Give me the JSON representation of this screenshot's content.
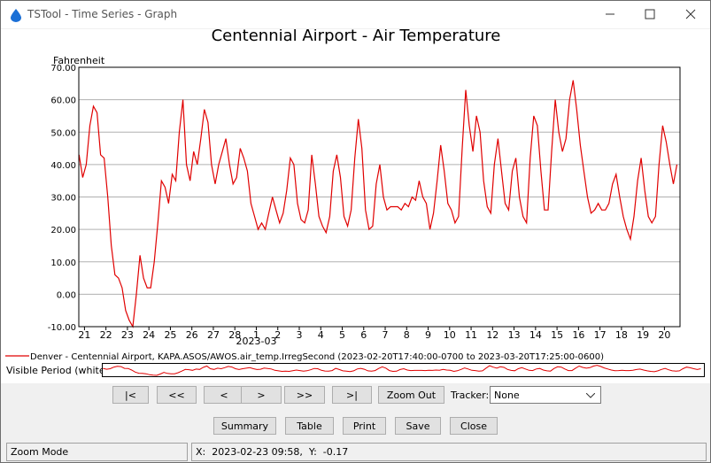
{
  "window": {
    "title": "TSTool - Time Series - Graph"
  },
  "chart_data": {
    "type": "line",
    "title": "Centennial Airport - Air Temperature",
    "y_label": "Fahrenheit",
    "grid": true,
    "xlim": [
      "2023-02-20 17:40",
      "2023-03-20 17:25"
    ],
    "ylim": [
      -10,
      70
    ],
    "yticks": [
      {
        "value": -10,
        "label": "-10.00"
      },
      {
        "value": 0,
        "label": "0.00"
      },
      {
        "value": 10,
        "label": "10.00"
      },
      {
        "value": 20,
        "label": "20.00"
      },
      {
        "value": 30,
        "label": "30.00"
      },
      {
        "value": 40,
        "label": "40.00"
      },
      {
        "value": 50,
        "label": "50.00"
      },
      {
        "value": 60,
        "label": "60.00"
      },
      {
        "value": 70,
        "label": "70.00"
      }
    ],
    "xticks": [
      {
        "value": "2023-02-21 00:00",
        "label": "21"
      },
      {
        "value": "2023-02-22 00:00",
        "label": "22"
      },
      {
        "value": "2023-02-23 00:00",
        "label": "23"
      },
      {
        "value": "2023-02-24 00:00",
        "label": "24"
      },
      {
        "value": "2023-02-25 00:00",
        "label": "25"
      },
      {
        "value": "2023-02-26 00:00",
        "label": "26"
      },
      {
        "value": "2023-02-27 00:00",
        "label": "27"
      },
      {
        "value": "2023-02-28 00:00",
        "label": "28"
      },
      {
        "value": "2023-03-01 00:00",
        "label": "1"
      },
      {
        "value": "2023-03-02 00:00",
        "label": "2"
      },
      {
        "value": "2023-03-03 00:00",
        "label": "3"
      },
      {
        "value": "2023-03-04 00:00",
        "label": "4"
      },
      {
        "value": "2023-03-05 00:00",
        "label": "5"
      },
      {
        "value": "2023-03-06 00:00",
        "label": "6"
      },
      {
        "value": "2023-03-07 00:00",
        "label": "7"
      },
      {
        "value": "2023-03-08 00:00",
        "label": "8"
      },
      {
        "value": "2023-03-09 00:00",
        "label": "9"
      },
      {
        "value": "2023-03-10 00:00",
        "label": "10"
      },
      {
        "value": "2023-03-11 00:00",
        "label": "11"
      },
      {
        "value": "2023-03-12 00:00",
        "label": "12"
      },
      {
        "value": "2023-03-13 00:00",
        "label": "13"
      },
      {
        "value": "2023-03-14 00:00",
        "label": "14"
      },
      {
        "value": "2023-03-15 00:00",
        "label": "15"
      },
      {
        "value": "2023-03-16 00:00",
        "label": "16"
      },
      {
        "value": "2023-03-17 00:00",
        "label": "17"
      },
      {
        "value": "2023-03-18 00:00",
        "label": "18"
      },
      {
        "value": "2023-03-19 00:00",
        "label": "19"
      },
      {
        "value": "2023-03-20 00:00",
        "label": "20"
      }
    ],
    "x_period_label": {
      "value": "2023-03-01 00:00",
      "label": "2023-03"
    },
    "x": [
      "2023-02-20 18:00",
      "2023-02-20 22:00",
      "2023-02-21 02:00",
      "2023-02-21 06:00",
      "2023-02-21 10:00",
      "2023-02-21 14:00",
      "2023-02-21 18:00",
      "2023-02-21 22:00",
      "2023-02-22 02:00",
      "2023-02-22 06:00",
      "2023-02-22 10:00",
      "2023-02-22 14:00",
      "2023-02-22 18:00",
      "2023-02-22 22:00",
      "2023-02-23 02:00",
      "2023-02-23 06:00",
      "2023-02-23 10:00",
      "2023-02-23 14:00",
      "2023-02-23 18:00",
      "2023-02-23 22:00",
      "2023-02-24 02:00",
      "2023-02-24 06:00",
      "2023-02-24 10:00",
      "2023-02-24 14:00",
      "2023-02-24 18:00",
      "2023-02-24 22:00",
      "2023-02-25 02:00",
      "2023-02-25 06:00",
      "2023-02-25 10:00",
      "2023-02-25 14:00",
      "2023-02-25 18:00",
      "2023-02-25 22:00",
      "2023-02-26 02:00",
      "2023-02-26 06:00",
      "2023-02-26 10:00",
      "2023-02-26 14:00",
      "2023-02-26 18:00",
      "2023-02-26 22:00",
      "2023-02-27 02:00",
      "2023-02-27 06:00",
      "2023-02-27 10:00",
      "2023-02-27 14:00",
      "2023-02-27 18:00",
      "2023-02-27 22:00",
      "2023-02-28 02:00",
      "2023-02-28 06:00",
      "2023-02-28 10:00",
      "2023-02-28 14:00",
      "2023-02-28 18:00",
      "2023-02-28 22:00",
      "2023-03-01 02:00",
      "2023-03-01 06:00",
      "2023-03-01 10:00",
      "2023-03-01 14:00",
      "2023-03-01 18:00",
      "2023-03-01 22:00",
      "2023-03-02 02:00",
      "2023-03-02 06:00",
      "2023-03-02 10:00",
      "2023-03-02 14:00",
      "2023-03-02 18:00",
      "2023-03-02 22:00",
      "2023-03-03 02:00",
      "2023-03-03 06:00",
      "2023-03-03 10:00",
      "2023-03-03 14:00",
      "2023-03-03 18:00",
      "2023-03-03 22:00",
      "2023-03-04 02:00",
      "2023-03-04 06:00",
      "2023-03-04 10:00",
      "2023-03-04 14:00",
      "2023-03-04 18:00",
      "2023-03-04 22:00",
      "2023-03-05 02:00",
      "2023-03-05 06:00",
      "2023-03-05 10:00",
      "2023-03-05 14:00",
      "2023-03-05 18:00",
      "2023-03-05 22:00",
      "2023-03-06 02:00",
      "2023-03-06 06:00",
      "2023-03-06 10:00",
      "2023-03-06 14:00",
      "2023-03-06 18:00",
      "2023-03-06 22:00",
      "2023-03-07 02:00",
      "2023-03-07 06:00",
      "2023-03-07 10:00",
      "2023-03-07 14:00",
      "2023-03-07 18:00",
      "2023-03-07 22:00",
      "2023-03-08 02:00",
      "2023-03-08 06:00",
      "2023-03-08 10:00",
      "2023-03-08 14:00",
      "2023-03-08 18:00",
      "2023-03-08 22:00",
      "2023-03-09 02:00",
      "2023-03-09 06:00",
      "2023-03-09 10:00",
      "2023-03-09 14:00",
      "2023-03-09 18:00",
      "2023-03-09 22:00",
      "2023-03-10 02:00",
      "2023-03-10 06:00",
      "2023-03-10 10:00",
      "2023-03-10 14:00",
      "2023-03-10 18:00",
      "2023-03-10 22:00",
      "2023-03-11 02:00",
      "2023-03-11 06:00",
      "2023-03-11 10:00",
      "2023-03-11 14:00",
      "2023-03-11 18:00",
      "2023-03-11 22:00",
      "2023-03-12 02:00",
      "2023-03-12 06:00",
      "2023-03-12 10:00",
      "2023-03-12 14:00",
      "2023-03-12 18:00",
      "2023-03-12 22:00",
      "2023-03-13 02:00",
      "2023-03-13 06:00",
      "2023-03-13 10:00",
      "2023-03-13 14:00",
      "2023-03-13 18:00",
      "2023-03-13 22:00",
      "2023-03-14 02:00",
      "2023-03-14 06:00",
      "2023-03-14 10:00",
      "2023-03-14 14:00",
      "2023-03-14 18:00",
      "2023-03-14 22:00",
      "2023-03-15 02:00",
      "2023-03-15 06:00",
      "2023-03-15 10:00",
      "2023-03-15 14:00",
      "2023-03-15 18:00",
      "2023-03-15 22:00",
      "2023-03-16 02:00",
      "2023-03-16 06:00",
      "2023-03-16 10:00",
      "2023-03-16 14:00",
      "2023-03-16 18:00",
      "2023-03-16 22:00",
      "2023-03-17 02:00",
      "2023-03-17 06:00",
      "2023-03-17 10:00",
      "2023-03-17 14:00",
      "2023-03-17 18:00",
      "2023-03-17 22:00",
      "2023-03-18 02:00",
      "2023-03-18 06:00",
      "2023-03-18 10:00",
      "2023-03-18 14:00",
      "2023-03-18 18:00",
      "2023-03-18 22:00",
      "2023-03-19 02:00",
      "2023-03-19 06:00",
      "2023-03-19 10:00",
      "2023-03-19 14:00",
      "2023-03-19 18:00",
      "2023-03-19 22:00",
      "2023-03-20 02:00",
      "2023-03-20 06:00",
      "2023-03-20 10:00",
      "2023-03-20 14:00"
    ],
    "series": [
      {
        "name": "Denver - Centennial Airport, KAPA.ASOS/AWOS.air_temp.IrregSecond (2023-02-20T17:40:00-0700 to 2023-03-20T17:25:00-0600)",
        "color": "#e00000",
        "values": [
          43,
          36,
          40,
          52,
          58,
          56,
          43,
          42,
          30,
          15,
          6,
          5,
          2,
          -5,
          -8,
          -10,
          0,
          12,
          5,
          2,
          2,
          10,
          22,
          35,
          33,
          28,
          37,
          35,
          50,
          60,
          40,
          35,
          44,
          40,
          48,
          57,
          53,
          40,
          34,
          40,
          44,
          48,
          40,
          34,
          36,
          45,
          42,
          38,
          28,
          24,
          20,
          22,
          20,
          25,
          30,
          26,
          22,
          25,
          32,
          42,
          40,
          28,
          23,
          22,
          26,
          43,
          34,
          24,
          21,
          19,
          24,
          38,
          43,
          36,
          24,
          21,
          26,
          42,
          54,
          45,
          26,
          20,
          21,
          34,
          40,
          30,
          26,
          27,
          27,
          27,
          26,
          28,
          27,
          30,
          29,
          35,
          30,
          28,
          20,
          25,
          35,
          46,
          38,
          28,
          26,
          22,
          24,
          45,
          63,
          52,
          44,
          55,
          50,
          35,
          27,
          25,
          40,
          48,
          38,
          28,
          26,
          38,
          42,
          30,
          24,
          22,
          42,
          55,
          52,
          38,
          26,
          26,
          44,
          60,
          50,
          44,
          48,
          60,
          66,
          57,
          46,
          38,
          30,
          25,
          26,
          28,
          26,
          26,
          28,
          34,
          37,
          30,
          24,
          20,
          17,
          24,
          35,
          42,
          32,
          24,
          22,
          24,
          40,
          52,
          47,
          40,
          34,
          40
        ]
      }
    ]
  },
  "overview": {
    "label": "Visible Period (white):"
  },
  "controls": {
    "nav_buttons": [
      "|<",
      "<<",
      "<",
      ">",
      ">>",
      ">|"
    ],
    "zoom_out": "Zoom Out",
    "tracker_label": "Tracker:",
    "tracker_value": "None",
    "action_buttons": [
      "Summary",
      "Table",
      "Print",
      "Save",
      "Close"
    ]
  },
  "status": {
    "mode": "Zoom Mode",
    "position": "X:  2023-02-23 09:58,  Y:  -0.17"
  }
}
